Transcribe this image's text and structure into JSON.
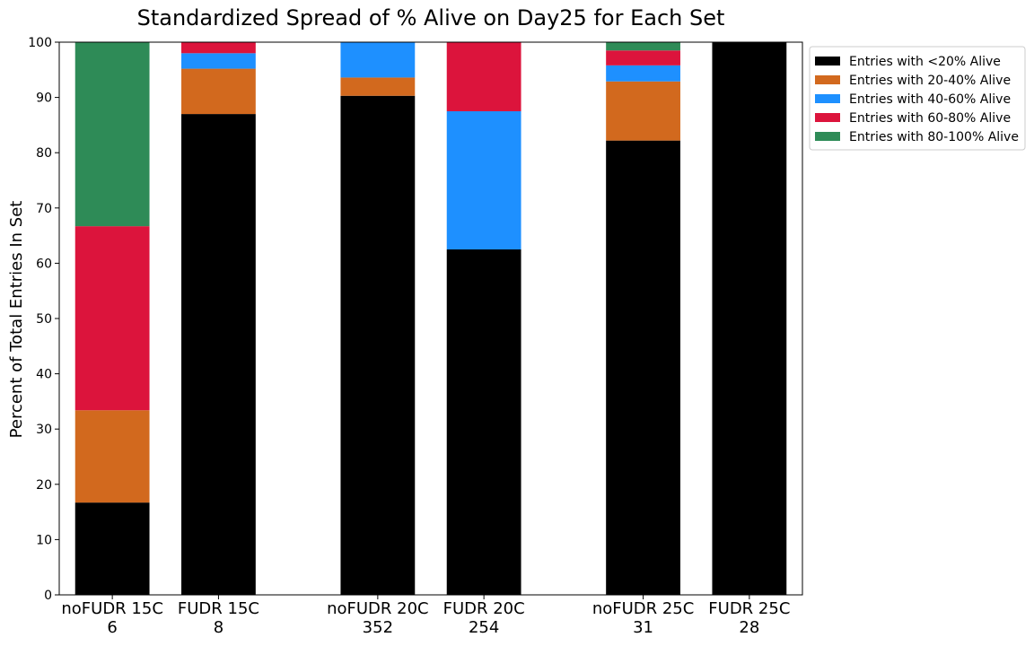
{
  "chart_data": {
    "type": "bar",
    "stacked": true,
    "title": "Standardized Spread of % Alive on Day25 for Each Set",
    "xlabel": "",
    "ylabel": "Percent of Total Entries In Set",
    "ylim": [
      0,
      100
    ],
    "yticks": [
      "0",
      "10",
      "20",
      "30",
      "40",
      "50",
      "60",
      "70",
      "80",
      "90",
      "100"
    ],
    "grid": false,
    "legend_position": "outside-top-right",
    "categories": [
      {
        "name": "noFUDR 15C",
        "count": "6"
      },
      {
        "name": "FUDR 15C",
        "count": "8"
      },
      {
        "name": "noFUDR 20C",
        "count": "352"
      },
      {
        "name": "FUDR 20C",
        "count": "254"
      },
      {
        "name": "noFUDR 25C",
        "count": "31"
      },
      {
        "name": "FUDR 25C",
        "count": "28"
      }
    ],
    "series": [
      {
        "name": "Entries with <20% Alive",
        "color": "#000000",
        "values": [
          16.7,
          87.0,
          90.3,
          62.5,
          82.2,
          100.0
        ]
      },
      {
        "name": "Entries with 20-40% Alive",
        "color": "#d2691e",
        "values": [
          16.7,
          8.2,
          3.3,
          0.0,
          10.7,
          0.0
        ]
      },
      {
        "name": "Entries with 40-60% Alive",
        "color": "#1e90ff",
        "values": [
          0.0,
          2.8,
          6.4,
          25.0,
          2.9,
          0.0
        ]
      },
      {
        "name": "Entries with 60-80% Alive",
        "color": "#dc143c",
        "values": [
          33.3,
          2.0,
          0.0,
          12.5,
          2.7,
          0.0
        ]
      },
      {
        "name": "Entries with 80-100% Alive",
        "color": "#2e8b57",
        "values": [
          33.3,
          0.0,
          0.0,
          0.0,
          1.5,
          0.0
        ]
      }
    ]
  }
}
